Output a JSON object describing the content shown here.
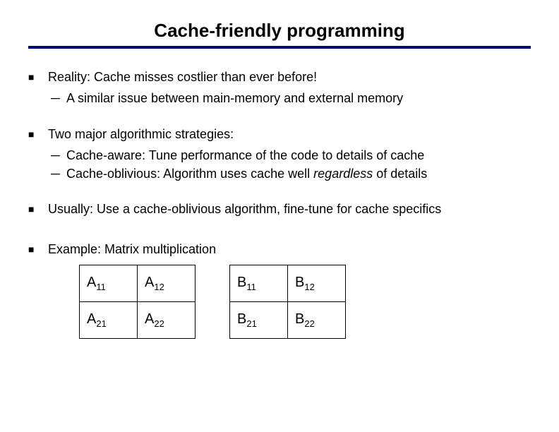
{
  "title": "Cache-friendly programming",
  "title_rule_color": "#000080",
  "bullets": {
    "b1": "Reality: Cache misses costlier than ever before!",
    "b1a": "A similar issue between main-memory and external memory",
    "b2": "Two major algorithmic strategies:",
    "b2a": "Cache-aware: Tune performance of the code to details of cache",
    "b2b_pre": "Cache-oblivious: Algorithm uses cache well ",
    "b2b_em": "regardless",
    "b2b_post": " of details",
    "b3": "Usually: Use a cache-oblivious algorithm, fine-tune for cache specifics",
    "b4": "Example: Matrix multiplication"
  },
  "matrix_a": {
    "letter": "A",
    "cells": [
      [
        "11",
        "12"
      ],
      [
        "21",
        "22"
      ]
    ]
  },
  "matrix_b": {
    "letter": "B",
    "cells": [
      [
        "11",
        "12"
      ],
      [
        "21",
        "22"
      ]
    ]
  },
  "styling": {
    "slide_bg": "#ffffff",
    "text_color": "#000000",
    "title_fontsize": 26,
    "body_fontsize": 18,
    "matrix_cell_w": 82,
    "matrix_cell_h": 52,
    "matrix_border": "#000000"
  }
}
